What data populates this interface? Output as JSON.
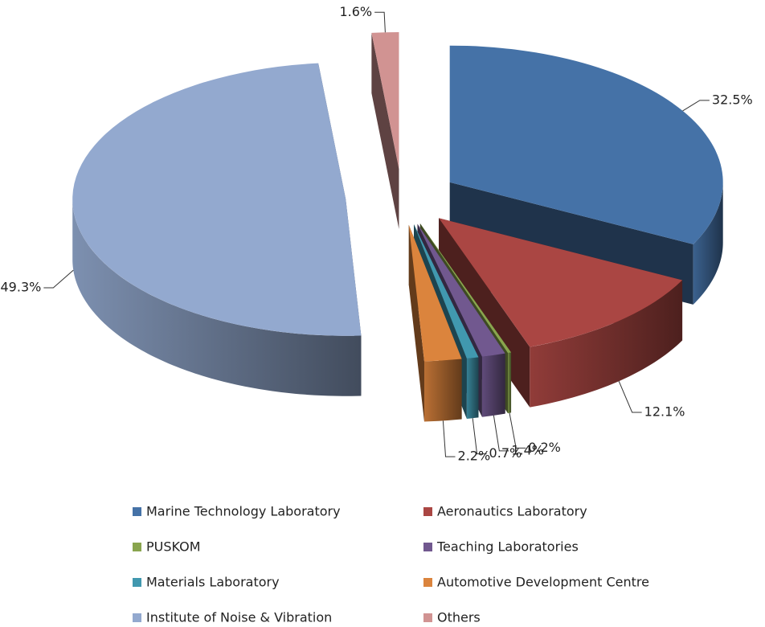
{
  "chart_data": {
    "type": "pie",
    "categories": [
      "Marine Technology Laboratory",
      "Aeronautics Laboratory",
      "PUSKOM",
      "Teaching Laboratories",
      "Materials Laboratory",
      "Automotive Development Centre",
      "Institute of Noise & Vibration",
      "Others"
    ],
    "values": [
      32.5,
      12.1,
      0.2,
      1.4,
      0.7,
      2.2,
      49.3,
      1.6
    ],
    "value_labels": [
      "32.5%",
      "12.1%",
      "0.2%",
      "1.4%",
      "0.7%",
      "2.2%",
      "49.3%",
      "1.6%"
    ],
    "colors": [
      "#4572a7",
      "#aa4643",
      "#89a54e",
      "#71588f",
      "#4198af",
      "#db843d",
      "#93a9cf",
      "#d19392"
    ],
    "legend": "bottom",
    "exploded": true,
    "3d": true
  }
}
